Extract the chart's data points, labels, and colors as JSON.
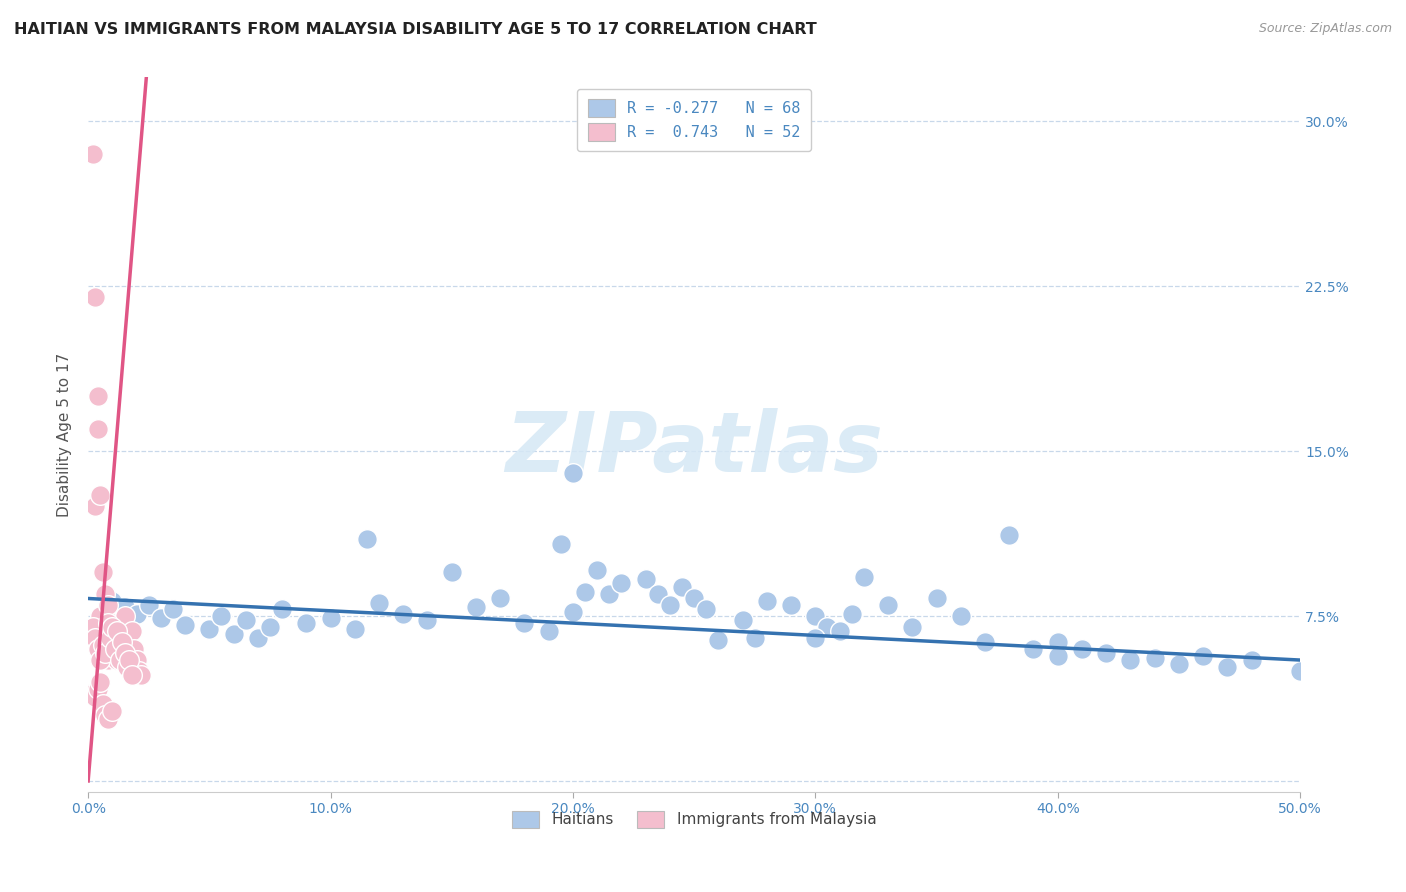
{
  "title": "HAITIAN VS IMMIGRANTS FROM MALAYSIA DISABILITY AGE 5 TO 17 CORRELATION CHART",
  "source": "Source: ZipAtlas.com",
  "ylabel": "Disability Age 5 to 17",
  "xlim": [
    0.0,
    0.5
  ],
  "ylim": [
    -0.005,
    0.32
  ],
  "xticks": [
    0.0,
    0.1,
    0.2,
    0.3,
    0.4,
    0.5
  ],
  "yticks": [
    0.0,
    0.075,
    0.15,
    0.225,
    0.3
  ],
  "xtick_labels": [
    "0.0%",
    "10.0%",
    "20.0%",
    "30.0%",
    "40.0%",
    "50.0%"
  ],
  "right_ytick_labels": [
    "",
    "7.5%",
    "15.0%",
    "22.5%",
    "30.0%"
  ],
  "legend_entries": [
    {
      "label": "R = -0.277   N = 68",
      "color": "#adc8e8"
    },
    {
      "label": "R =  0.743   N = 52",
      "color": "#f4bece"
    }
  ],
  "legend_bottom": [
    "Haitians",
    "Immigrants from Malaysia"
  ],
  "blue_scatter_x": [
    0.01,
    0.015,
    0.02,
    0.025,
    0.03,
    0.035,
    0.04,
    0.05,
    0.055,
    0.06,
    0.065,
    0.07,
    0.075,
    0.08,
    0.09,
    0.1,
    0.11,
    0.115,
    0.12,
    0.13,
    0.14,
    0.15,
    0.16,
    0.17,
    0.18,
    0.19,
    0.195,
    0.2,
    0.205,
    0.21,
    0.215,
    0.22,
    0.23,
    0.235,
    0.24,
    0.245,
    0.25,
    0.255,
    0.26,
    0.27,
    0.275,
    0.28,
    0.29,
    0.3,
    0.305,
    0.31,
    0.315,
    0.32,
    0.33,
    0.34,
    0.35,
    0.36,
    0.37,
    0.38,
    0.39,
    0.4,
    0.41,
    0.42,
    0.43,
    0.44,
    0.45,
    0.46,
    0.47,
    0.48,
    0.2,
    0.3,
    0.4,
    0.5
  ],
  "blue_scatter_y": [
    0.082,
    0.079,
    0.076,
    0.08,
    0.074,
    0.078,
    0.071,
    0.069,
    0.075,
    0.067,
    0.073,
    0.065,
    0.07,
    0.078,
    0.072,
    0.074,
    0.069,
    0.11,
    0.081,
    0.076,
    0.073,
    0.095,
    0.079,
    0.083,
    0.072,
    0.068,
    0.108,
    0.077,
    0.086,
    0.096,
    0.085,
    0.09,
    0.092,
    0.085,
    0.08,
    0.088,
    0.083,
    0.078,
    0.064,
    0.073,
    0.065,
    0.082,
    0.08,
    0.075,
    0.07,
    0.068,
    0.076,
    0.093,
    0.08,
    0.07,
    0.083,
    0.075,
    0.063,
    0.112,
    0.06,
    0.063,
    0.06,
    0.058,
    0.055,
    0.056,
    0.053,
    0.057,
    0.052,
    0.055,
    0.14,
    0.065,
    0.057,
    0.05
  ],
  "pink_scatter_x": [
    0.002,
    0.003,
    0.004,
    0.005,
    0.006,
    0.007,
    0.008,
    0.009,
    0.01,
    0.011,
    0.012,
    0.013,
    0.014,
    0.015,
    0.016,
    0.017,
    0.018,
    0.019,
    0.02,
    0.021,
    0.022,
    0.003,
    0.004,
    0.005,
    0.006,
    0.007,
    0.008,
    0.002,
    0.003,
    0.004,
    0.005,
    0.006,
    0.007,
    0.008,
    0.009,
    0.01,
    0.011,
    0.012,
    0.013,
    0.014,
    0.015,
    0.016,
    0.017,
    0.018,
    0.002,
    0.003,
    0.004,
    0.005,
    0.006,
    0.007,
    0.008,
    0.01
  ],
  "pink_scatter_y": [
    0.285,
    0.125,
    0.16,
    0.075,
    0.065,
    0.06,
    0.055,
    0.068,
    0.072,
    0.058,
    0.055,
    0.065,
    0.062,
    0.075,
    0.063,
    0.058,
    0.068,
    0.06,
    0.055,
    0.05,
    0.048,
    0.22,
    0.175,
    0.13,
    0.095,
    0.085,
    0.08,
    0.07,
    0.065,
    0.06,
    0.055,
    0.062,
    0.058,
    0.072,
    0.065,
    0.07,
    0.06,
    0.068,
    0.055,
    0.063,
    0.058,
    0.052,
    0.055,
    0.048,
    0.04,
    0.038,
    0.042,
    0.045,
    0.035,
    0.03,
    0.028,
    0.032
  ],
  "blue_line_x": [
    0.0,
    0.5
  ],
  "blue_line_y": [
    0.083,
    0.055
  ],
  "pink_line_x": [
    0.0,
    0.024
  ],
  "pink_line_y": [
    0.0,
    0.32
  ],
  "blue_line_color": "#3572b0",
  "pink_line_color": "#e05585",
  "blue_scatter_color": "#adc8e8",
  "pink_scatter_color": "#f4bece",
  "watermark_text": "ZIPatlas",
  "watermark_color": "#d5e8f5",
  "background_color": "#ffffff",
  "grid_color": "#c8d8ea",
  "title_fontsize": 11.5,
  "axis_label_fontsize": 11,
  "tick_fontsize": 10,
  "source_fontsize": 9
}
